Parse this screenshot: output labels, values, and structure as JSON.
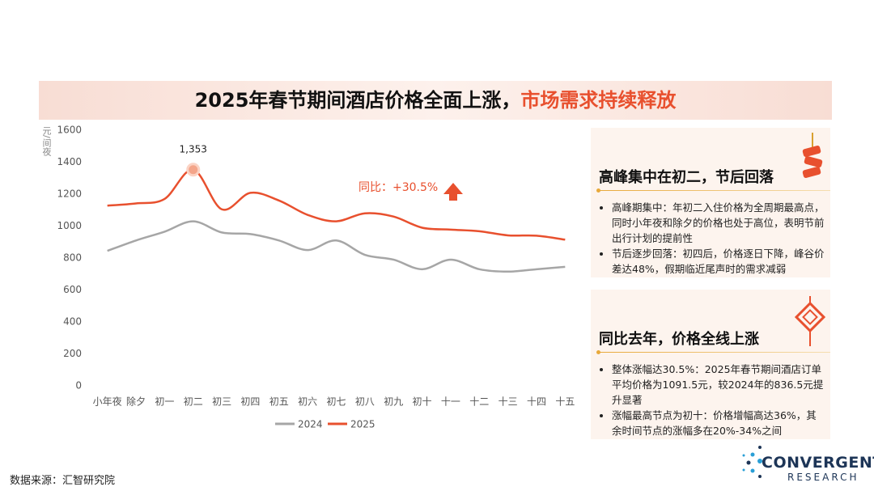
{
  "title_main": "2025年春节期间酒店价格全面上涨，",
  "title_highlight": "市场需求持续释放",
  "chart_data": {
    "type": "line",
    "y_label": "元/间夜",
    "categories": [
      "小年夜",
      "除夕",
      "初一",
      "初二",
      "初三",
      "初四",
      "初五",
      "初六",
      "初七",
      "初八",
      "初九",
      "初十",
      "十一",
      "十二",
      "十三",
      "十四",
      "十五"
    ],
    "series": [
      {
        "name": "2024",
        "color": "#a6a6a6",
        "values": [
          845,
          910,
          965,
          1030,
          960,
          950,
          910,
          850,
          910,
          820,
          790,
          730,
          790,
          730,
          715,
          730,
          745
        ]
      },
      {
        "name": "2025",
        "color": "#e8502e",
        "values": [
          1128,
          1142,
          1170,
          1353,
          1105,
          1208,
          1160,
          1070,
          1030,
          1080,
          1060,
          990,
          978,
          968,
          942,
          940,
          915
        ],
        "value_labels": [
          null,
          null,
          null,
          "1,353",
          null,
          null,
          null,
          null,
          null,
          null,
          null,
          null,
          null,
          null,
          null,
          null,
          null
        ]
      }
    ],
    "annotation": "同比：+30.5%",
    "ylim": [
      0,
      1600
    ],
    "yticks": [
      0,
      200,
      400,
      600,
      800,
      1000,
      1200,
      1400,
      1600
    ],
    "grid": false
  },
  "panels": [
    {
      "heading": "高峰集中在初二，节后回落",
      "bullets": [
        "高峰期集中：年初二入住价格为全周期最高点，同时小年夜和除夕的价格也处于高位，表明节前出行计划的提前性",
        "节后逐步回落：初四后，价格逐日下降，峰谷价差达48%，假期临近尾声时的需求减弱"
      ]
    },
    {
      "heading": "同比去年，价格全线上涨",
      "bullets": [
        "整体涨幅达30.5%：2025年春节期间酒店订单平均价格为1091.5元，较2024年的836.5元提升显著",
        "涨幅最高节点为初十：价格增幅高达36%，其余时间节点的涨幅多在20%-34%之间"
      ]
    }
  ],
  "source": "数据来源：汇智研究院",
  "logo": {
    "name": "CONVERGENT",
    "sub": "RESEARCH"
  }
}
